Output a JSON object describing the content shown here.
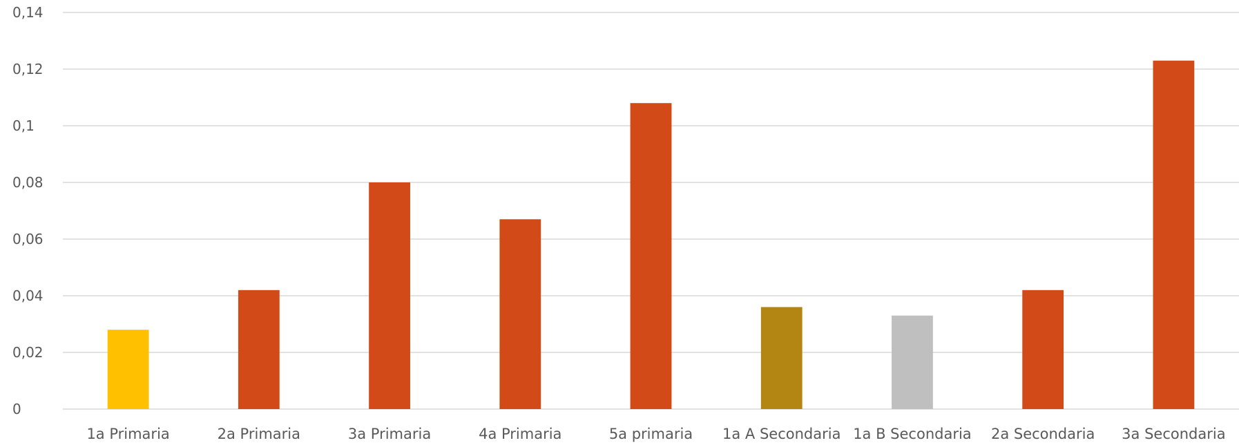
{
  "chart_data": {
    "type": "bar",
    "title": "",
    "xlabel": "",
    "ylabel": "",
    "categories": [
      "1a Primaria",
      "2a Primaria",
      "3a Primaria",
      "4a Primaria",
      "5a primaria",
      "1a A Secondaria",
      "1a B Secondaria",
      "2a Secondaria",
      "3a Secondaria"
    ],
    "values": [
      0.028,
      0.042,
      0.08,
      0.067,
      0.108,
      0.036,
      0.033,
      0.042,
      0.123
    ],
    "colors": [
      "#ffc000",
      "#d24a17",
      "#d24a17",
      "#d24a17",
      "#d24a17",
      "#b38512",
      "#bfbfbf",
      "#d24a17",
      "#d24a17"
    ],
    "ylim": [
      0,
      0.14
    ],
    "yticks": [
      0,
      0.02,
      0.04,
      0.06,
      0.08,
      0.1,
      0.12,
      0.14
    ],
    "ytick_labels": [
      "0",
      "0,02",
      "0,04",
      "0,06",
      "0,08",
      "0,1",
      "0,12",
      "0,14"
    ],
    "grid": true,
    "legend": "none"
  }
}
